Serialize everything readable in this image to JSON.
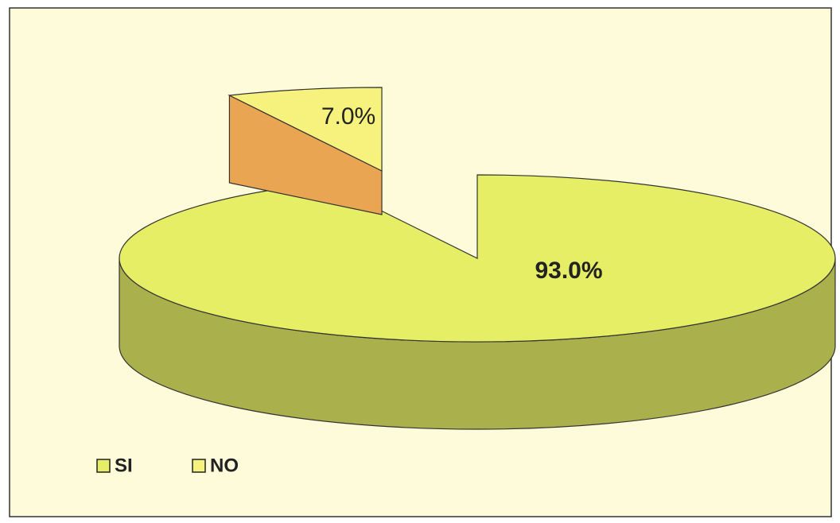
{
  "chart_data": {
    "type": "pie",
    "categories": [
      "SI",
      "NO"
    ],
    "values": [
      93.0,
      7.0
    ],
    "value_labels": [
      "93.0%",
      "7.0%"
    ],
    "colors": [
      "#e6ee66",
      "#f7f27e"
    ],
    "explode": [
      false,
      true
    ],
    "legend": "bottom-left"
  }
}
